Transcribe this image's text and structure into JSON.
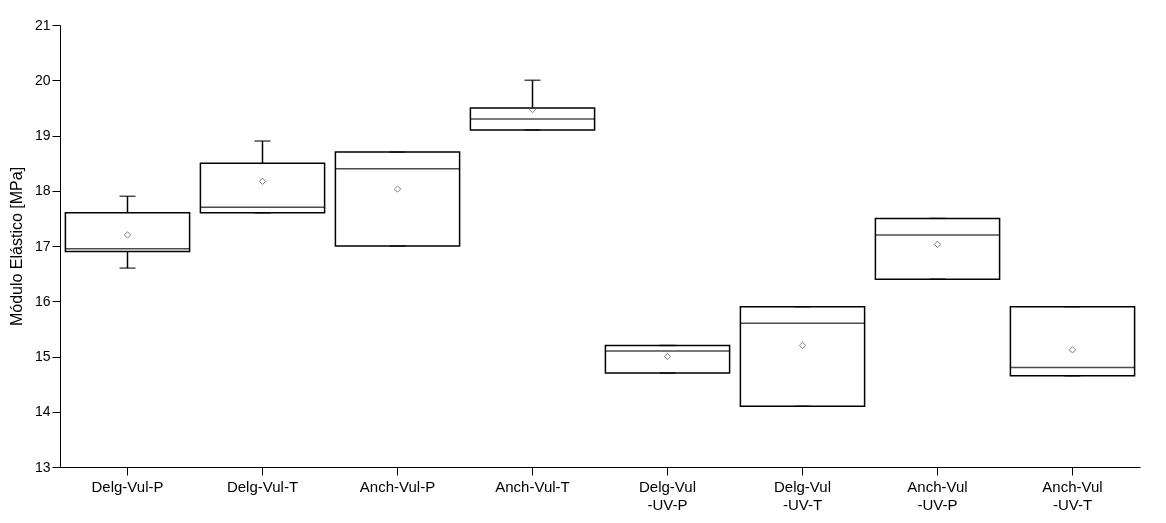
{
  "chart_data": {
    "type": "box",
    "ylabel": "Módulo Elástico [MPa]",
    "categories": [
      "Delg-Vul-P",
      "Delg-Vul-T",
      "Anch-Vul-P",
      "Anch-Vul-T",
      "Delg-Vul\n-UV-P",
      "Delg-Vul\n-UV-T",
      "Anch-Vul\n-UV-P",
      "Anch-Vul\n-UV-T"
    ],
    "boxes": [
      {
        "low": 16.6,
        "q1": 16.9,
        "median": 16.95,
        "q3": 17.6,
        "high": 17.9,
        "mean": 17.2
      },
      {
        "low": 17.6,
        "q1": 17.6,
        "median": 17.7,
        "q3": 18.5,
        "high": 18.9,
        "mean": 18.17
      },
      {
        "low": 17.0,
        "q1": 17.0,
        "median": 18.4,
        "q3": 18.7,
        "high": 18.7,
        "mean": 18.03
      },
      {
        "low": 19.1,
        "q1": 19.1,
        "median": 19.3,
        "q3": 19.5,
        "high": 20.0,
        "mean": 19.47
      },
      {
        "low": 14.7,
        "q1": 14.7,
        "median": 15.1,
        "q3": 15.2,
        "high": 15.2,
        "mean": 15.0
      },
      {
        "low": 14.1,
        "q1": 14.1,
        "median": 15.6,
        "q3": 15.9,
        "high": 15.9,
        "mean": 15.2
      },
      {
        "low": 16.4,
        "q1": 16.4,
        "median": 17.2,
        "q3": 17.5,
        "high": 17.5,
        "mean": 17.03
      },
      {
        "low": 14.65,
        "q1": 14.65,
        "median": 14.8,
        "q3": 15.9,
        "high": 15.9,
        "mean": 15.12
      }
    ],
    "ylim": [
      13,
      21
    ],
    "yticks": [
      13,
      14,
      15,
      16,
      17,
      18,
      19,
      20,
      21
    ],
    "grid": false,
    "marker": "diamond"
  }
}
